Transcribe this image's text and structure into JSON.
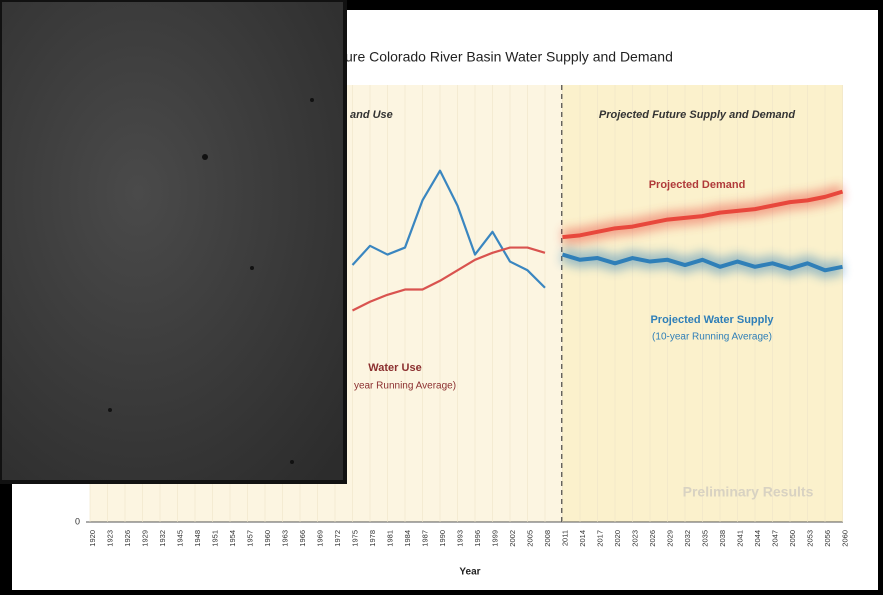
{
  "chart_data": {
    "type": "line",
    "title": "ure Colorado River Basin Water Supply and Demand",
    "x_label": "Year",
    "categories": [
      "1920",
      "1923",
      "1926",
      "1929",
      "1932",
      "1945",
      "1948",
      "1951",
      "1954",
      "1957",
      "1960",
      "1963",
      "1966",
      "1969",
      "1972",
      "1975",
      "1978",
      "1981",
      "1984",
      "1987",
      "1990",
      "1993",
      "1996",
      "1999",
      "2002",
      "2005",
      "2008",
      "2011",
      "2014",
      "2017",
      "2020",
      "2023",
      "2026",
      "2029",
      "2032",
      "2035",
      "2038",
      "2041",
      "2044",
      "2047",
      "2050",
      "2053",
      "2056",
      "2060"
    ],
    "ylim": [
      0,
      25
    ],
    "yticks": [
      0
    ],
    "series": [
      {
        "color": "#3a86c0",
        "values": [
          null,
          null,
          null,
          null,
          null,
          null,
          null,
          null,
          null,
          null,
          null,
          null,
          null,
          null,
          null,
          14.7,
          15.8,
          15.3,
          15.7,
          18.4,
          20.1,
          18.1,
          15.3,
          16.6,
          14.9,
          14.4,
          13.4,
          null,
          null,
          null,
          null,
          null,
          null,
          null,
          null,
          null,
          null,
          null,
          null,
          null,
          null,
          null,
          null,
          null
        ]
      },
      {
        "color": "#d9534f",
        "values": [
          null,
          null,
          null,
          null,
          null,
          null,
          null,
          null,
          null,
          null,
          null,
          null,
          null,
          null,
          null,
          12.1,
          12.6,
          13.0,
          13.3,
          13.3,
          13.8,
          14.4,
          15.0,
          15.4,
          15.7,
          15.7,
          15.4,
          null,
          null,
          null,
          null,
          null,
          null,
          null,
          null,
          null,
          null,
          null,
          null,
          null,
          null,
          null,
          null,
          null
        ]
      },
      {
        "color": "#e8473c",
        "projected": true,
        "values": [
          null,
          null,
          null,
          null,
          null,
          null,
          null,
          null,
          null,
          null,
          null,
          null,
          null,
          null,
          null,
          null,
          null,
          null,
          null,
          null,
          null,
          null,
          null,
          null,
          null,
          null,
          null,
          16.3,
          16.4,
          16.6,
          16.8,
          16.9,
          17.1,
          17.3,
          17.4,
          17.5,
          17.7,
          17.8,
          17.9,
          18.1,
          18.3,
          18.4,
          18.6,
          18.9
        ]
      },
      {
        "color": "#2f7fb8",
        "projected": true,
        "values": [
          null,
          null,
          null,
          null,
          null,
          null,
          null,
          null,
          null,
          null,
          null,
          null,
          null,
          null,
          null,
          null,
          null,
          null,
          null,
          null,
          null,
          null,
          null,
          null,
          null,
          null,
          null,
          15.3,
          15.0,
          15.1,
          14.8,
          15.1,
          14.9,
          15.0,
          14.7,
          15.0,
          14.6,
          14.9,
          14.6,
          14.8,
          14.5,
          14.8,
          14.4,
          14.6
        ]
      }
    ],
    "annotations": [
      "and Use",
      "Projected Future Supply and Demand",
      "Projected Demand",
      "Projected Water Supply",
      "(10-year Running Average)",
      "Water Use",
      "year Running Average)",
      "Preliminary Results"
    ]
  }
}
